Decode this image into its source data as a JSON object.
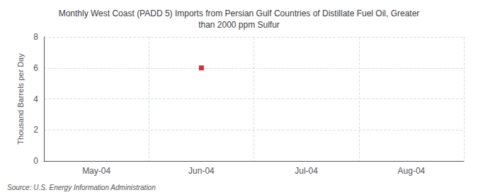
{
  "chart_data": {
    "type": "scatter",
    "title": "Monthly West Coast (PADD 5) Imports from Persian Gulf Countries of Distillate Fuel Oil, Greater\nthan 2000 ppm Sulfur",
    "ylabel": "Thousand Barrels per Day",
    "source": "Source: U.S. Energy Information Administration",
    "categories": [
      "May-04",
      "Jun-04",
      "Jul-04",
      "Aug-04"
    ],
    "values": [
      null,
      6,
      null,
      null
    ],
    "color": "#CC0000",
    "marker": "square",
    "ylim": [
      0,
      8
    ],
    "yticks": [
      0,
      2,
      4,
      6,
      8
    ],
    "grid": true
  }
}
